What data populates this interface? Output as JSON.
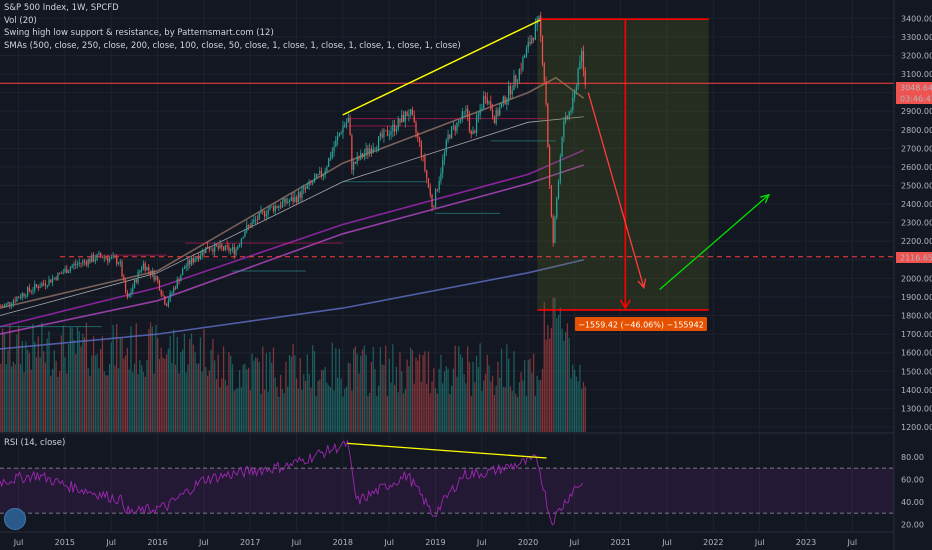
{
  "legend": {
    "title": "S&P 500 Index, 1W, SPCFD",
    "vol": "Vol (20)",
    "swing": "Swing high low support & resistance, by Patternsmart.com (12)",
    "smas": "SMAs (500, close, 250, close, 200, close, 100, close, 50, close, 1, close, 1, close, 1, close, 1, close, 1, close)"
  },
  "rsi": {
    "label": "RSI (14, close)"
  },
  "measure_label": "−1559.42 (−46.06%) −155942",
  "price_tags": {
    "current": "3048.64",
    "countdown": "03:46:47",
    "support": "2116.65"
  },
  "colors": {
    "background": "#131722",
    "up": "#26a69a",
    "down": "#ef5350",
    "measure": "#ff0000",
    "trend_yellow": "#ffff00",
    "trend_green": "#00e000",
    "measure_box": "#e65100",
    "rsi": "#9c27b0"
  },
  "chart_data": {
    "type": "candlestick",
    "title": "S&P 500 Index, 1W, SPCFD",
    "ylim": [
      1200,
      3450
    ],
    "y_ticks": [
      3400,
      3300,
      3200,
      3100,
      3000,
      2900,
      2800,
      2700,
      2600,
      2500,
      2400,
      2300,
      2200,
      2100,
      2000,
      1900,
      1800,
      1700,
      1600,
      1500,
      1400,
      1300,
      1200
    ],
    "x_ticks": [
      "Jul",
      "2015",
      "Jul",
      "2016",
      "Jul",
      "2017",
      "Jul",
      "2018",
      "Jul",
      "2019",
      "Jul",
      "2020",
      "Jul",
      "2021",
      "Jul",
      "2022",
      "Jul",
      "2023",
      "Jul"
    ],
    "price_path": [
      [
        2014.35,
        1850
      ],
      [
        2014.6,
        1930
      ],
      [
        2014.85,
        1990
      ],
      [
        2015.1,
        2070
      ],
      [
        2015.4,
        2120
      ],
      [
        2015.6,
        2090
      ],
      [
        2015.68,
        1880
      ],
      [
        2015.85,
        2080
      ],
      [
        2016.0,
        2000
      ],
      [
        2016.1,
        1860
      ],
      [
        2016.3,
        2060
      ],
      [
        2016.55,
        2170
      ],
      [
        2016.85,
        2150
      ],
      [
        2016.95,
        2260
      ],
      [
        2017.2,
        2370
      ],
      [
        2017.5,
        2430
      ],
      [
        2017.8,
        2570
      ],
      [
        2018.0,
        2810
      ],
      [
        2018.08,
        2860
      ],
      [
        2018.1,
        2600
      ],
      [
        2018.3,
        2700
      ],
      [
        2018.6,
        2830
      ],
      [
        2018.73,
        2900
      ],
      [
        2018.85,
        2700
      ],
      [
        2018.98,
        2380
      ],
      [
        2019.15,
        2770
      ],
      [
        2019.35,
        2900
      ],
      [
        2019.4,
        2750
      ],
      [
        2019.55,
        3000
      ],
      [
        2019.65,
        2860
      ],
      [
        2019.9,
        3100
      ],
      [
        2020.05,
        3300
      ],
      [
        2020.13,
        3386
      ],
      [
        2020.2,
        2990
      ],
      [
        2020.25,
        2400
      ],
      [
        2020.28,
        2190
      ],
      [
        2020.38,
        2800
      ],
      [
        2020.5,
        2950
      ],
      [
        2020.58,
        3230
      ],
      [
        2020.62,
        3050
      ]
    ],
    "sma_lines": [
      {
        "color": "#5c6bc0",
        "points": [
          [
            2014.3,
            1620
          ],
          [
            2016.0,
            1700
          ],
          [
            2018.0,
            1840
          ],
          [
            2020.0,
            2030
          ],
          [
            2020.6,
            2100
          ]
        ]
      },
      {
        "color": "#ab47bc",
        "points": [
          [
            2014.3,
            1700
          ],
          [
            2016.0,
            1880
          ],
          [
            2018.0,
            2240
          ],
          [
            2020.0,
            2510
          ],
          [
            2020.6,
            2610
          ]
        ]
      },
      {
        "color": "#9c27b0",
        "points": [
          [
            2014.3,
            1740
          ],
          [
            2016.0,
            1950
          ],
          [
            2018.0,
            2290
          ],
          [
            2020.0,
            2560
          ],
          [
            2020.6,
            2690
          ]
        ]
      },
      {
        "color": "#c2c2c2",
        "points": [
          [
            2014.3,
            1800
          ],
          [
            2016.0,
            2030
          ],
          [
            2018.0,
            2520
          ],
          [
            2020.0,
            2840
          ],
          [
            2020.6,
            2870
          ]
        ]
      },
      {
        "color": "#8d6e63",
        "points": [
          [
            2014.3,
            1840
          ],
          [
            2016.0,
            2040
          ],
          [
            2018.0,
            2620
          ],
          [
            2020.0,
            3000
          ],
          [
            2020.3,
            3080
          ],
          [
            2020.6,
            2970
          ]
        ]
      }
    ],
    "support_resistance": [
      {
        "price": 2116.65,
        "style": "dashed",
        "color": "#ff3d3d"
      },
      {
        "price": 3050,
        "style": "solid",
        "color": "#ff3d3d"
      }
    ],
    "trendlines": [
      {
        "name": "price-top",
        "color": "#ffff00",
        "points": [
          [
            2018.0,
            2880
          ],
          [
            2020.13,
            3390
          ]
        ]
      }
    ],
    "measure": {
      "from_price": 3395,
      "to_price": 1830,
      "x_start": 2020.1,
      "x_end": 2021.95,
      "x_arrow": 2021.05
    },
    "forecast_arrows": [
      {
        "color": "#ff3d3d",
        "points": [
          [
            2020.65,
            3000
          ],
          [
            2021.25,
            1950
          ]
        ]
      },
      {
        "color": "#00e000",
        "points": [
          [
            2021.42,
            1940
          ],
          [
            2022.6,
            2450
          ]
        ]
      }
    ],
    "volume": {
      "ylim": [
        0,
        1
      ],
      "baseline_price": 1200
    },
    "rsi": {
      "ylim": [
        15,
        95
      ],
      "levels": [
        70,
        30
      ],
      "ticks": [
        80,
        60,
        40,
        20
      ],
      "path": [
        [
          2014.3,
          58
        ],
        [
          2014.7,
          64
        ],
        [
          2015.0,
          55
        ],
        [
          2015.6,
          42
        ],
        [
          2015.7,
          30
        ],
        [
          2016.1,
          36
        ],
        [
          2016.5,
          60
        ],
        [
          2016.9,
          66
        ],
        [
          2017.4,
          72
        ],
        [
          2018.05,
          92
        ],
        [
          2018.15,
          40
        ],
        [
          2018.7,
          64
        ],
        [
          2018.98,
          28
        ],
        [
          2019.3,
          64
        ],
        [
          2019.55,
          66
        ],
        [
          2020.1,
          78
        ],
        [
          2020.25,
          22
        ],
        [
          2020.5,
          52
        ],
        [
          2020.6,
          58
        ]
      ],
      "trendline": [
        [
          2018.05,
          92
        ],
        [
          2020.2,
          79
        ]
      ]
    }
  }
}
